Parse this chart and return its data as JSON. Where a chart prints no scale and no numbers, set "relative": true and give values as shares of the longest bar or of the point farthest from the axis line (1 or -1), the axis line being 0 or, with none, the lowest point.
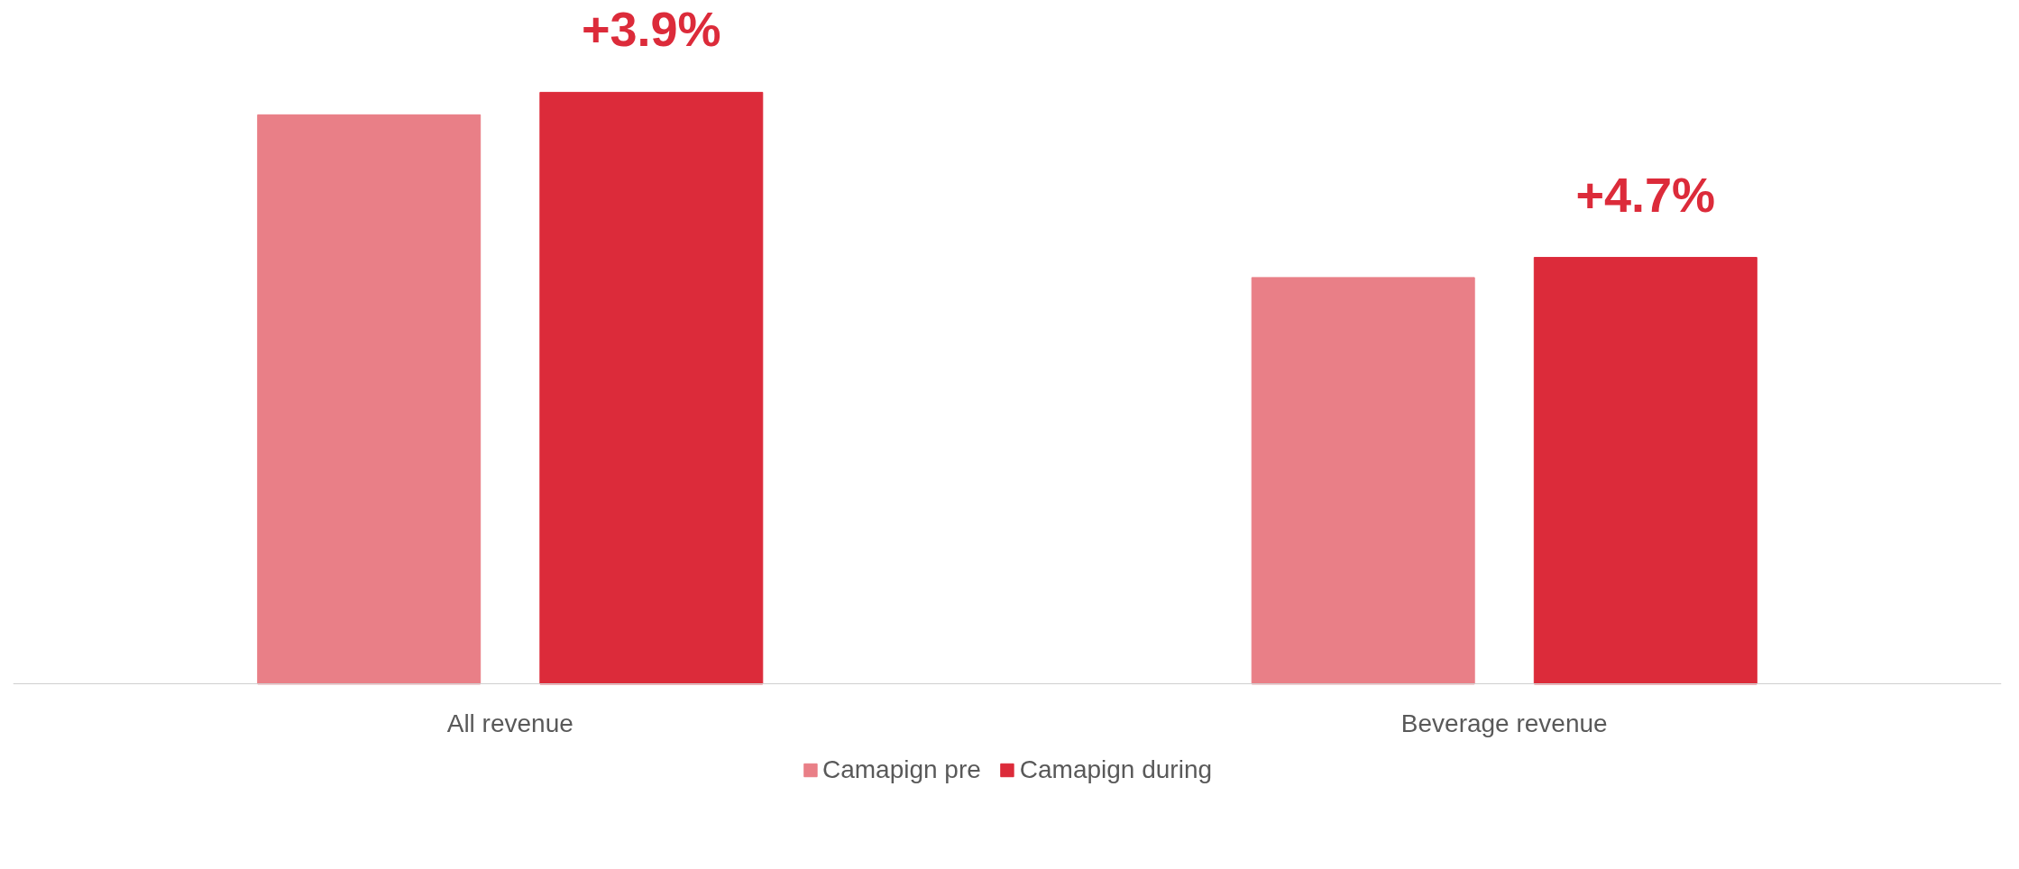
{
  "chart_data": {
    "type": "bar",
    "relative": true,
    "categories": [
      "All revenue",
      "Beverage revenue"
    ],
    "series": [
      {
        "name": "Camapign pre",
        "color": "#e97f87",
        "values": [
          0.962,
          0.687
        ]
      },
      {
        "name": "Camapign during",
        "color": "#dc2b3a",
        "values": [
          1,
          0.721
        ]
      }
    ],
    "annotations": [
      "+3.9%",
      "+4.7%"
    ],
    "legend": "bottom",
    "grid": false
  }
}
